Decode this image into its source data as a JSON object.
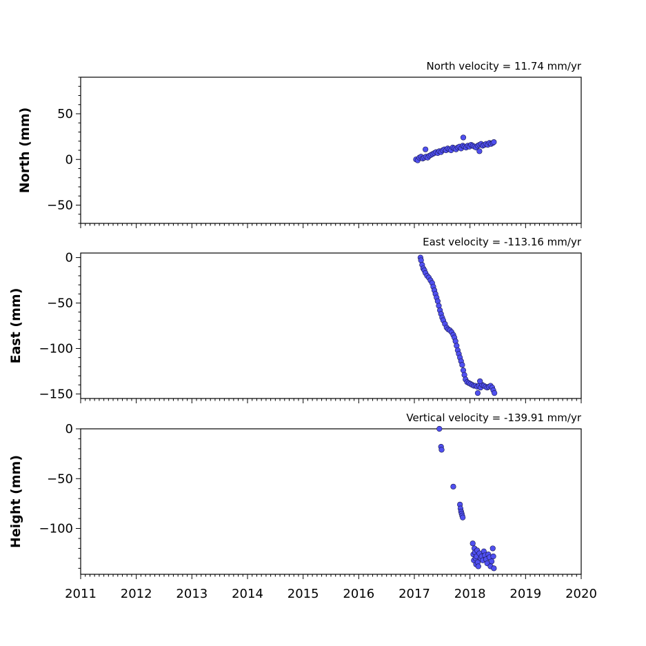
{
  "chart_data": [
    {
      "type": "scatter",
      "title": "North velocity = 11.74 mm/yr",
      "ylabel": "North (mm)",
      "xlabel": "",
      "xlim": [
        2011,
        2020
      ],
      "ylim": [
        -70,
        90
      ],
      "xticks": [
        "2011",
        "2012",
        "2013",
        "2014",
        "2015",
        "2016",
        "2017",
        "2018",
        "2019",
        "2020"
      ],
      "yticks": [
        {
          "v": 50,
          "t": "50"
        },
        {
          "v": 0,
          "t": "0"
        },
        {
          "v": -50,
          "t": "−50"
        }
      ],
      "x": [
        2017.03,
        2017.06,
        2017.09,
        2017.12,
        2017.15,
        2017.18,
        2017.21,
        2017.24,
        2017.27,
        2017.3,
        2017.33,
        2017.36,
        2017.39,
        2017.42,
        2017.45,
        2017.48,
        2017.51,
        2017.54,
        2017.57,
        2017.6,
        2017.63,
        2017.66,
        2017.69,
        2017.72,
        2017.75,
        2017.78,
        2017.81,
        2017.84,
        2017.87,
        2017.9,
        2017.93,
        2017.96,
        2017.99,
        2018.02,
        2018.05,
        2018.08,
        2018.11,
        2018.14,
        2018.17,
        2018.2,
        2018.23,
        2018.26,
        2018.29,
        2018.32,
        2018.35,
        2018.38,
        2018.41,
        2018.43,
        2017.2,
        2017.88,
        2018.17
      ],
      "y": [
        0,
        -1,
        2,
        3,
        1,
        2,
        3,
        2,
        4,
        5,
        6,
        7,
        8,
        7,
        9,
        8,
        10,
        11,
        10,
        12,
        11,
        10,
        13,
        12,
        11,
        13,
        14,
        12,
        15,
        14,
        13,
        15,
        14,
        16,
        15,
        14,
        13,
        15,
        16,
        17,
        15,
        16,
        17,
        16,
        18,
        17,
        18,
        19,
        11,
        24,
        9
      ]
    },
    {
      "type": "scatter",
      "title": "East velocity = -113.16 mm/yr",
      "ylabel": "East (mm)",
      "xlabel": "",
      "xlim": [
        2011,
        2020
      ],
      "ylim": [
        -155,
        5
      ],
      "xticks": [
        "2011",
        "2012",
        "2013",
        "2014",
        "2015",
        "2016",
        "2017",
        "2018",
        "2019",
        "2020"
      ],
      "yticks": [
        {
          "v": 0,
          "t": "0"
        },
        {
          "v": -50,
          "t": "−50"
        },
        {
          "v": -100,
          "t": "−100"
        },
        {
          "v": -150,
          "t": "−150"
        }
      ],
      "x": [
        2017.11,
        2017.12,
        2017.14,
        2017.16,
        2017.18,
        2017.2,
        2017.23,
        2017.26,
        2017.29,
        2017.32,
        2017.34,
        2017.36,
        2017.38,
        2017.4,
        2017.42,
        2017.44,
        2017.46,
        2017.48,
        2017.5,
        2017.52,
        2017.55,
        2017.58,
        2017.61,
        2017.64,
        2017.67,
        2017.7,
        2017.72,
        2017.74,
        2017.76,
        2017.78,
        2017.8,
        2017.82,
        2017.84,
        2017.86,
        2017.88,
        2017.9,
        2017.92,
        2017.95,
        2017.98,
        2018.01,
        2018.04,
        2018.07,
        2018.1,
        2018.13,
        2018.16,
        2018.19,
        2018.22,
        2018.25,
        2018.28,
        2018.31,
        2018.34,
        2018.37,
        2018.4,
        2018.42,
        2018.44,
        2018.14,
        2018.18
      ],
      "y": [
        0,
        -3,
        -8,
        -12,
        -14,
        -17,
        -20,
        -22,
        -25,
        -28,
        -32,
        -36,
        -40,
        -44,
        -48,
        -53,
        -58,
        -62,
        -66,
        -69,
        -73,
        -77,
        -79,
        -80,
        -82,
        -85,
        -88,
        -92,
        -97,
        -102,
        -106,
        -110,
        -114,
        -118,
        -124,
        -129,
        -134,
        -137,
        -138,
        -139,
        -140,
        -141,
        -141,
        -142,
        -141,
        -143,
        -140,
        -141,
        -142,
        -143,
        -142,
        -141,
        -143,
        -146,
        -149,
        -149,
        -136
      ]
    },
    {
      "type": "scatter",
      "title": "Vertical velocity = -139.91 mm/yr",
      "ylabel": "Height (mm)",
      "xlabel": "",
      "xlim": [
        2011,
        2020
      ],
      "ylim": [
        -146,
        0
      ],
      "xticks": [
        "2011",
        "2012",
        "2013",
        "2014",
        "2015",
        "2016",
        "2017",
        "2018",
        "2019",
        "2020"
      ],
      "yticks": [
        {
          "v": 0,
          "t": "0"
        },
        {
          "v": -50,
          "t": "−50"
        },
        {
          "v": -100,
          "t": "−100"
        }
      ],
      "x": [
        2017.45,
        2017.48,
        2017.49,
        2017.7,
        2017.82,
        2017.83,
        2017.84,
        2017.85,
        2017.86,
        2017.87,
        2018.05,
        2018.06,
        2018.07,
        2018.08,
        2018.09,
        2018.1,
        2018.11,
        2018.12,
        2018.13,
        2018.14,
        2018.15,
        2018.17,
        2018.19,
        2018.21,
        2018.23,
        2018.25,
        2018.27,
        2018.29,
        2018.31,
        2018.33,
        2018.35,
        2018.37,
        2018.39,
        2018.41,
        2018.42,
        2018.43
      ],
      "y": [
        0,
        -18,
        -21,
        -58,
        -76,
        -80,
        -83,
        -85,
        -87,
        -89,
        -115,
        -126,
        -132,
        -120,
        -124,
        -130,
        -136,
        -128,
        -122,
        -134,
        -138,
        -125,
        -130,
        -128,
        -132,
        -123,
        -127,
        -131,
        -135,
        -126,
        -129,
        -138,
        -133,
        -120,
        -128,
        -140
      ]
    }
  ]
}
